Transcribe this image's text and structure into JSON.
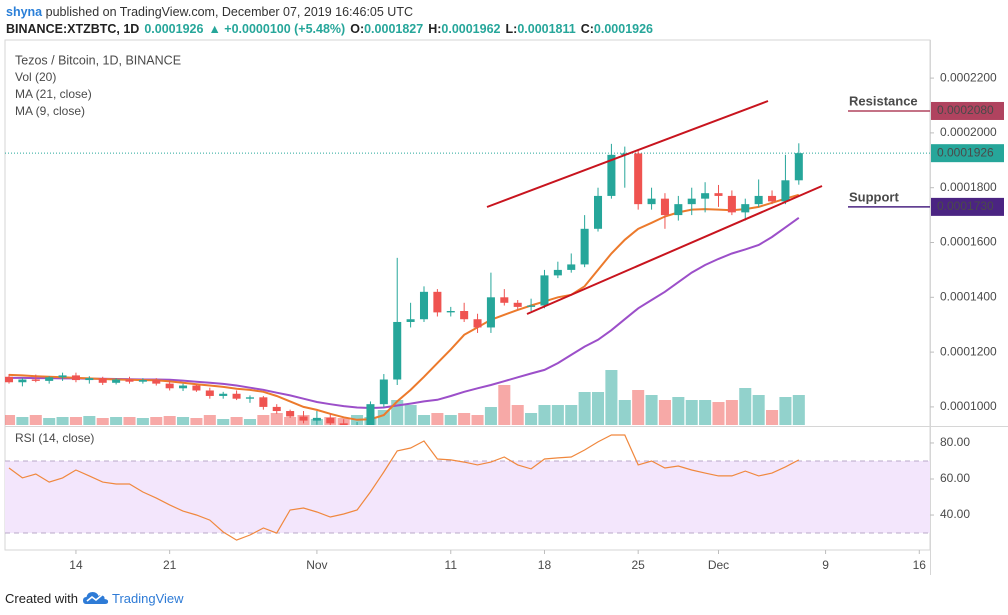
{
  "header": {
    "author": "shyna",
    "published": "published on TradingView.com, December 07, 2019 16:46:05 UTC",
    "symbol": "BINANCE:XTZBTC, 1D",
    "last": "0.0001926",
    "change": "▲ +0.0000100 (+5.48%)",
    "ohlc": [
      {
        "label": "O:",
        "value": "0.0001827"
      },
      {
        "label": "H:",
        "value": "0.0001962"
      },
      {
        "label": "L:",
        "value": "0.0001811"
      },
      {
        "label": "C:",
        "value": "0.0001926"
      }
    ]
  },
  "chart_data": [
    {
      "type": "candlestick",
      "title": "Tezos / Bitcoin, 1D, BINANCE",
      "x": [
        9,
        10,
        11,
        12,
        13,
        14,
        15,
        16,
        17,
        18,
        19,
        20,
        21,
        22,
        23,
        24,
        25,
        26,
        27,
        28,
        29,
        30,
        31,
        32,
        33,
        34,
        35,
        36,
        37,
        38,
        39,
        40,
        41,
        42,
        43,
        44,
        45,
        46,
        47,
        48,
        49,
        50,
        51,
        52,
        53,
        54,
        55,
        56,
        57,
        58,
        59,
        60,
        61,
        62,
        63,
        64,
        65,
        66,
        67,
        68
      ],
      "open": [
        0.000111,
        0.000109,
        0.00011,
        0.0001095,
        0.0001108,
        0.0001115,
        0.0001098,
        0.0001105,
        0.0001088,
        0.00011,
        0.0001092,
        0.0001098,
        0.0001085,
        0.0001068,
        0.0001078,
        0.000106,
        0.000104,
        0.0001048,
        0.000103,
        0.0001035,
        0.0001,
        9.85e-05,
        9.65e-05,
        9.5e-05,
        9.6e-05,
        9.4e-05,
        9.25e-05,
        9.3e-05,
        0.000101,
        0.00011,
        0.000131,
        0.000132,
        0.000142,
        0.0001345,
        0.000135,
        0.000132,
        0.000129,
        0.00014,
        0.000138,
        0.0001365,
        0.000137,
        0.000148,
        0.00015,
        0.000152,
        0.000165,
        0.000177,
        0.000192,
        0.0001925,
        0.000174,
        0.000176,
        0.00017,
        0.000174,
        0.000176,
        0.000178,
        0.000177,
        0.000171,
        0.000174,
        0.000177,
        0.000175,
        0.0001827
      ],
      "high": [
        0.000112,
        0.0001105,
        0.0001118,
        0.0001112,
        0.0001125,
        0.0001125,
        0.0001112,
        0.000111,
        0.0001105,
        0.000111,
        0.0001105,
        0.0001105,
        0.0001095,
        0.0001085,
        0.0001082,
        0.000107,
        0.0001055,
        0.000106,
        0.0001042,
        0.000104,
        0.000101,
        9.9e-05,
        9.85e-05,
        9.85e-05,
        9.75e-05,
        9.55e-05,
        9.45e-05,
        0.000102,
        0.000112,
        0.0001544,
        0.000138,
        0.000144,
        0.000143,
        0.0001365,
        0.000138,
        0.000134,
        0.000149,
        0.000143,
        0.000139,
        0.0001395,
        0.00015,
        0.000153,
        0.000156,
        0.00017,
        0.00018,
        0.000196,
        0.000195,
        0.0001935,
        0.00018,
        0.000178,
        0.000177,
        0.00018,
        0.000182,
        0.000181,
        0.000179,
        0.000176,
        0.000183,
        0.000179,
        0.000192,
        0.0001962
      ],
      "low": [
        0.0001085,
        0.0001075,
        0.000109,
        0.0001085,
        0.0001095,
        0.000109,
        0.0001085,
        0.000108,
        0.0001082,
        0.0001085,
        0.0001085,
        0.0001078,
        0.000106,
        0.0001058,
        0.0001055,
        0.000103,
        0.000103,
        0.0001025,
        0.0001015,
        9.9e-05,
        9.75e-05,
        9.6e-05,
        9.4e-05,
        9.35e-05,
        9.3e-05,
        9.15e-05,
        9.05e-05,
        9.25e-05,
        0.0001,
        0.000108,
        0.000129,
        0.000131,
        0.000133,
        0.000133,
        0.000131,
        0.000127,
        0.000127,
        0.000137,
        0.0001355,
        0.000135,
        0.000136,
        0.000147,
        0.000149,
        0.000151,
        0.000164,
        0.000176,
        0.00018,
        0.000172,
        0.000172,
        0.000165,
        0.000168,
        0.00017,
        0.000171,
        0.000173,
        0.00017,
        0.000168,
        0.000173,
        0.000174,
        0.000174,
        0.0001811
      ],
      "close": [
        0.000109,
        0.00011,
        0.0001095,
        0.0001108,
        0.0001115,
        0.0001098,
        0.0001105,
        0.0001088,
        0.00011,
        0.0001092,
        0.0001098,
        0.0001085,
        0.0001068,
        0.0001078,
        0.000106,
        0.000104,
        0.0001048,
        0.000103,
        0.0001035,
        0.0001,
        9.85e-05,
        9.65e-05,
        9.5e-05,
        9.6e-05,
        9.4e-05,
        9.25e-05,
        9.3e-05,
        0.000101,
        0.00011,
        0.000131,
        0.000132,
        0.000142,
        0.0001345,
        0.000135,
        0.000132,
        0.000129,
        0.00014,
        0.000138,
        0.0001365,
        0.000137,
        0.000148,
        0.00015,
        0.000152,
        0.000165,
        0.000177,
        0.000192,
        0.0001925,
        0.000174,
        0.000176,
        0.00017,
        0.000174,
        0.000176,
        0.000178,
        0.000177,
        0.000171,
        0.000174,
        0.000177,
        0.000175,
        0.0001827,
        0.0001926
      ],
      "up_color": "#26a69a",
      "down_color": "#ef5350",
      "xlim": [
        8.7,
        77.8
      ],
      "ylim": [
        9.34e-05,
        0.0002339
      ],
      "yticks": [
        {
          "value": 0.0001,
          "label": "0.0001000"
        },
        {
          "value": 0.00012,
          "label": "0.0001200"
        },
        {
          "value": 0.00014,
          "label": "0.0001400"
        },
        {
          "value": 0.00016,
          "label": "0.0001600"
        },
        {
          "value": 0.00018,
          "label": "0.0001800"
        },
        {
          "value": 0.0002,
          "label": "0.0002000"
        },
        {
          "value": 0.00022,
          "label": "0.0002200"
        }
      ],
      "volume": {
        "name": "Vol (20)",
        "ylim": [
          0,
          385
        ],
        "values": [
          10,
          8,
          10,
          7,
          8,
          8,
          9,
          7,
          8,
          8,
          7,
          8,
          9,
          8,
          7,
          10,
          6,
          8,
          6,
          10,
          12,
          8,
          10,
          6,
          8,
          7,
          10,
          8,
          15,
          25,
          20,
          10,
          12,
          10,
          12,
          10,
          18,
          40,
          20,
          12,
          20,
          20,
          20,
          33,
          33,
          55,
          25,
          35,
          30,
          25,
          28,
          25,
          25,
          23,
          25,
          37,
          30,
          15,
          28,
          30
        ]
      },
      "series": [
        {
          "name": "MA (21, close)",
          "color": "#9c4fc9",
          "values": [
            0.0001106,
            0.0001106,
            0.0001105,
            0.0001105,
            0.0001104,
            0.0001104,
            0.0001103,
            0.0001103,
            0.0001102,
            0.0001101,
            0.00011,
            0.00011,
            0.0001099,
            0.0001096,
            0.0001092,
            0.0001088,
            0.0001084,
            0.0001078,
            0.000107,
            0.0001062,
            0.0001052,
            0.0001042,
            0.000103,
            0.0001018,
            0.000101,
            0.0001003,
            9.98e-05,
            9.96e-05,
            9.98e-05,
            0.0001005,
            0.0001012,
            0.000102,
            0.0001026,
            0.000104,
            0.0001055,
            0.0001068,
            0.000108,
            0.0001094,
            0.0001108,
            0.0001122,
            0.0001135,
            0.000116,
            0.000119,
            0.000122,
            0.0001245,
            0.000128,
            0.000132,
            0.000136,
            0.000139,
            0.000142,
            0.0001455,
            0.000149,
            0.0001518,
            0.000154,
            0.000156,
            0.0001575,
            0.0001591,
            0.000162,
            0.0001655,
            0.000169
          ]
        },
        {
          "name": "MA (9, close)",
          "color": "#ec7a2c",
          "values": [
            0.0001117,
            0.0001115,
            0.0001112,
            0.000111,
            0.0001108,
            0.0001106,
            0.0001104,
            0.0001102,
            0.00011,
            0.0001099,
            0.0001098,
            0.0001097,
            0.0001093,
            0.0001088,
            0.0001083,
            0.0001078,
            0.0001073,
            0.0001066,
            0.0001062,
            0.0001055,
            0.000104,
            0.000102,
            0.0001,
            9.89e-05,
            9.75e-05,
            9.62e-05,
            9.53e-05,
            9.55e-05,
            9.7e-05,
            0.000102,
            0.0001062,
            0.000111,
            0.000116,
            0.000121,
            0.0001263,
            0.000129,
            0.0001318,
            0.0001336,
            0.0001354,
            0.000137,
            0.0001385,
            0.00014,
            0.0001409,
            0.000144,
            0.00015,
            0.000156,
            0.000161,
            0.000165,
            0.0001672,
            0.0001695,
            0.000171,
            0.000172,
            0.0001722,
            0.000172,
            0.0001718,
            0.0001722,
            0.000173,
            0.0001745,
            0.000176,
            0.0001774
          ]
        }
      ],
      "last_price": {
        "value": 0.0001926,
        "label": "0.0001926",
        "color": "#26a69a"
      },
      "levels": [
        {
          "name": "Resistance",
          "value": 0.000208,
          "label": "0.0002080",
          "color": "#b0435f"
        },
        {
          "name": "Support",
          "value": 0.000173,
          "label": "0.0001730",
          "color": "#4b2482"
        }
      ]
    },
    {
      "type": "line",
      "title": "RSI (14, close)",
      "x": [
        9,
        10,
        11,
        12,
        13,
        14,
        15,
        16,
        17,
        18,
        19,
        20,
        21,
        22,
        23,
        24,
        25,
        26,
        27,
        28,
        29,
        30,
        31,
        32,
        33,
        34,
        35,
        36,
        37,
        38,
        39,
        40,
        41,
        42,
        43,
        44,
        45,
        46,
        47,
        48,
        49,
        50,
        51,
        52,
        53,
        54,
        55,
        56,
        57,
        58,
        59,
        60,
        61,
        62,
        63,
        64,
        65,
        66,
        67,
        68
      ],
      "values": [
        66.1,
        60.6,
        62.8,
        58.3,
        60.6,
        65.0,
        61.7,
        58.3,
        57.2,
        57.2,
        52.8,
        49.4,
        45.6,
        42.2,
        40.0,
        37.2,
        30.6,
        26.1,
        28.9,
        32.8,
        30.0,
        42.8,
        43.9,
        41.7,
        38.9,
        40.6,
        42.8,
        52.8,
        63.9,
        75.6,
        77.2,
        81.1,
        71.1,
        70.6,
        69.4,
        67.8,
        69.4,
        72.2,
        67.8,
        65.6,
        71.1,
        71.7,
        72.2,
        76.1,
        80.6,
        84.4,
        84.4,
        67.8,
        70.0,
        66.1,
        67.2,
        65.0,
        63.3,
        61.7,
        61.7,
        64.4,
        61.7,
        63.3,
        66.7,
        70.6
      ],
      "color": "#f0883e",
      "band": [
        30,
        70
      ],
      "band_color": "#f3e6fc",
      "xlim": [
        8.7,
        77.8
      ],
      "ylim": [
        20.6,
        88.3
      ],
      "yticks": [
        {
          "value": 40,
          "label": "40.00"
        },
        {
          "value": 60,
          "label": "60.00"
        },
        {
          "value": 80,
          "label": "80.00"
        }
      ],
      "xticks": [
        {
          "value": 14,
          "label": "14"
        },
        {
          "value": 21,
          "label": "21"
        },
        {
          "value": 32,
          "label": "Nov"
        },
        {
          "value": 42,
          "label": "11"
        },
        {
          "value": 49,
          "label": "18"
        },
        {
          "value": 56,
          "label": "25"
        },
        {
          "value": 62,
          "label": "Dec"
        },
        {
          "value": 70,
          "label": "9"
        },
        {
          "value": 77,
          "label": "16"
        }
      ]
    }
  ],
  "footer": {
    "created": "Created with",
    "brand": "TradingView"
  }
}
